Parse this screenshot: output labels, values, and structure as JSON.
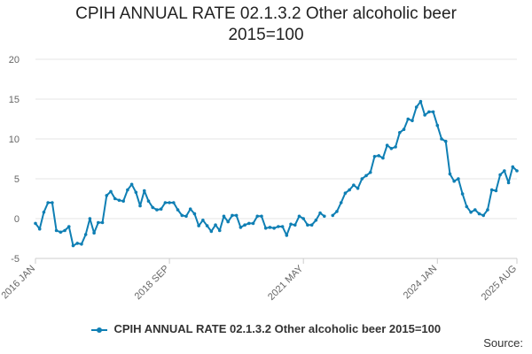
{
  "chart_data": {
    "type": "line",
    "title": "CPIH ANNUAL RATE 02.1.3.2 Other alcoholic beer",
    "subtitle": "2015=100",
    "xlabel": "",
    "ylabel": "",
    "ylim": [
      -5,
      20
    ],
    "yticks": [
      -5,
      0,
      5,
      10,
      15,
      20
    ],
    "xticks": [
      "2016 JAN",
      "2018 SEP",
      "2021 MAY",
      "2024 JAN",
      "2025 AUG"
    ],
    "x_start": "2016 JAN",
    "x_end": "2025 AUG",
    "grid": true,
    "legend_position": "bottom",
    "series": [
      {
        "name": "CPIH ANNUAL RATE 02.1.3.2 Other alcoholic beer 2015=100",
        "color": "#0f7fb4",
        "values": [
          -0.6,
          -1.3,
          0.8,
          2.0,
          2.0,
          -1.5,
          -1.7,
          -1.5,
          -1.0,
          -3.4,
          -3.1,
          -3.2,
          -2.0,
          0.0,
          -1.8,
          -0.5,
          -0.5,
          2.9,
          3.4,
          2.5,
          2.3,
          2.2,
          3.6,
          4.3,
          3.3,
          1.6,
          3.5,
          2.2,
          1.4,
          1.1,
          1.2,
          2.0,
          2.0,
          2.0,
          1.1,
          0.4,
          0.3,
          1.2,
          0.6,
          -0.9,
          -0.2,
          -0.9,
          -1.6,
          -0.8,
          -1.5,
          0.3,
          -0.4,
          0.4,
          0.4,
          -1.1,
          -0.8,
          -0.6,
          -0.6,
          0.3,
          0.3,
          -1.2,
          -1.1,
          -1.2,
          -1.0,
          -1.0,
          -2.1,
          -0.7,
          -0.8,
          0.3,
          0.0,
          -0.8,
          -0.8,
          -0.2,
          0.7,
          0.3,
          null,
          0.4,
          0.9,
          2.0,
          3.2,
          3.6,
          4.2,
          3.8,
          5.0,
          5.4,
          5.8,
          7.8,
          7.9,
          7.6,
          9.2,
          8.8,
          9.0,
          10.8,
          11.2,
          12.5,
          12.3,
          14.0,
          14.7,
          13.0,
          13.4,
          13.4,
          11.7,
          10.0,
          9.7,
          5.6,
          4.7,
          5.0,
          3.1,
          1.5,
          0.8,
          1.1,
          0.6,
          0.4,
          1.1,
          3.6,
          3.5,
          5.5,
          6.0,
          4.5,
          6.5,
          6.0
        ]
      }
    ]
  },
  "legend": {
    "label": "CPIH ANNUAL RATE 02.1.3.2 Other alcoholic beer 2015=100"
  },
  "source_label": "Source:"
}
